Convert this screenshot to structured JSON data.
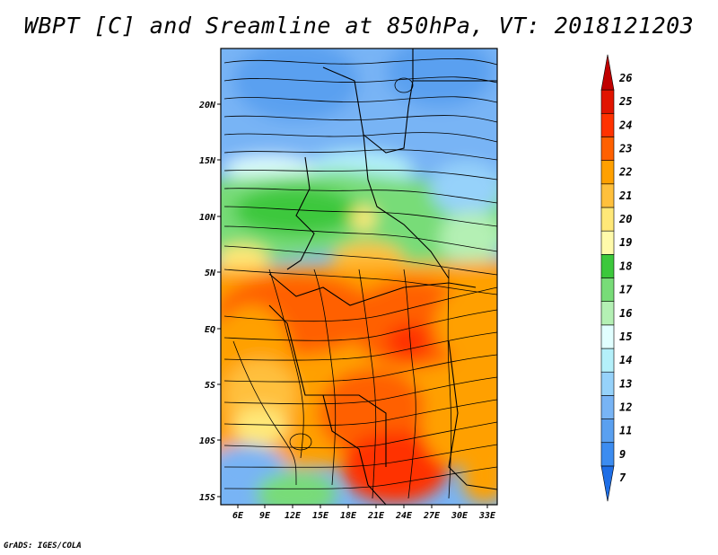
{
  "title": "WBPT [C] and Sreamline at 850hPa, VT: 2018121203",
  "credit": "GrADS: IGES/COLA",
  "map": {
    "lat_ticks": [
      "20N",
      "15N",
      "10N",
      "5N",
      "EQ",
      "5S",
      "10S",
      "15S"
    ],
    "lon_ticks": [
      "6E",
      "9E",
      "12E",
      "15E",
      "18E",
      "21E",
      "24E",
      "27E",
      "30E",
      "33E"
    ]
  },
  "colorbar": {
    "levels": [
      "7",
      "9",
      "11",
      "12",
      "13",
      "14",
      "15",
      "16",
      "17",
      "18",
      "19",
      "20",
      "21",
      "22",
      "23",
      "24",
      "25",
      "26"
    ],
    "colors": [
      "#1e6ee6",
      "#3c8cf0",
      "#5aa0f0",
      "#78b4f5",
      "#96d2fa",
      "#b4f0fa",
      "#e1ffff",
      "#b4f0b4",
      "#78dc78",
      "#3cc83c",
      "#fffaaa",
      "#ffe878",
      "#ffc03c",
      "#ffa000",
      "#ff6000",
      "#ff3200",
      "#e11400",
      "#c00000"
    ]
  }
}
